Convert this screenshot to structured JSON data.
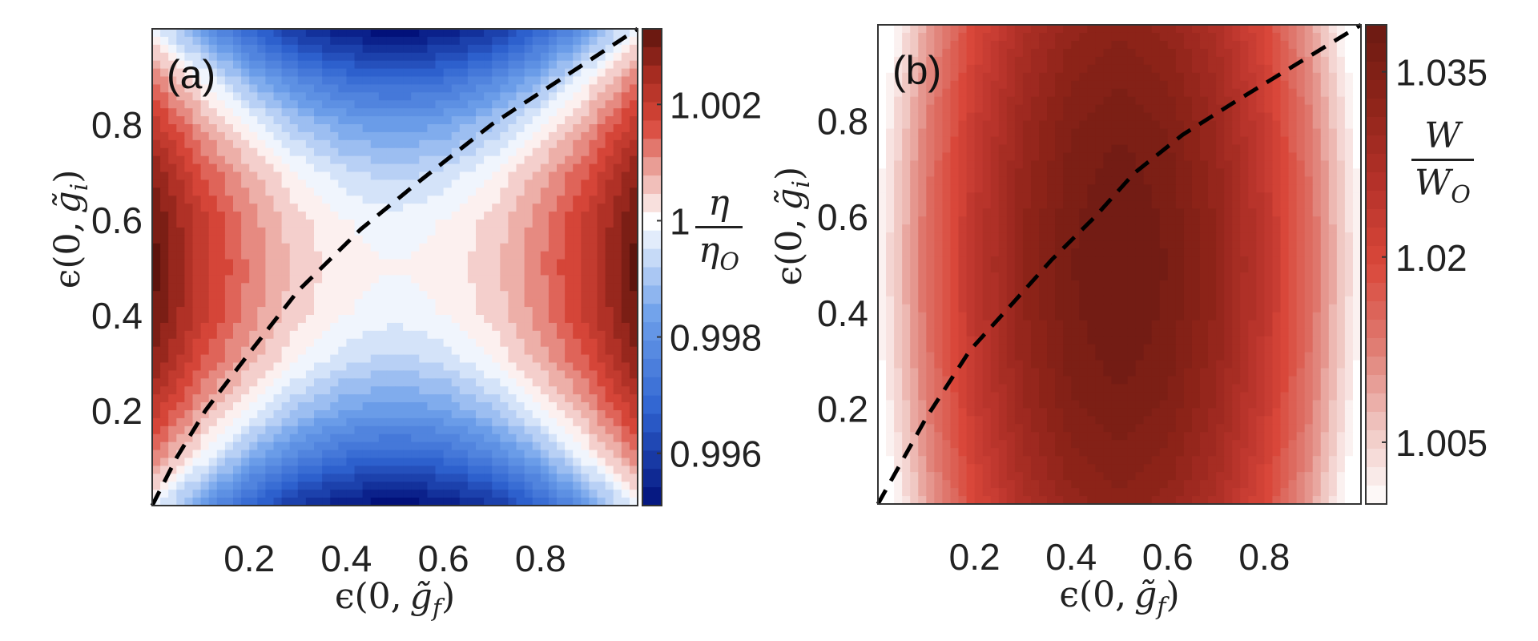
{
  "chart_data": [
    {
      "type": "heatmap",
      "panel_label": "(a)",
      "xlabel": "ϵ(0, g̃f)",
      "ylabel": "ϵ(0, g̃i)",
      "xlabel_main": "ϵ(0,",
      "xlabel_var": "g̃",
      "xlabel_sub": "f",
      "ylabel_main": "ϵ(0,",
      "ylabel_var": "g̃",
      "ylabel_sub": "i",
      "xlim": [
        0,
        1
      ],
      "ylim": [
        0,
        1
      ],
      "xticks": [
        "0.2",
        "0.4",
        "0.6",
        "0.8"
      ],
      "yticks": [
        "0.2",
        "0.4",
        "0.6",
        "0.8"
      ],
      "colorbar": {
        "label_num": "η",
        "label_den": "η",
        "label_den_sub": "O",
        "range": [
          0.9951,
          1.0033
        ],
        "ticks": [
          "1.002",
          "1",
          "0.998",
          "0.996"
        ],
        "colormap": [
          "#02117a",
          "#2f63d0",
          "#6ea0ea",
          "#ffffff",
          "#ecaaa3",
          "#d9473a",
          "#a92d22",
          "#5e140d"
        ],
        "diverging_center": 1.0
      },
      "grid_x": [
        0,
        0.1,
        0.2,
        0.3,
        0.4,
        0.5,
        0.6,
        0.7,
        0.8,
        0.9,
        1.0
      ],
      "grid_y": [
        0,
        0.1,
        0.2,
        0.3,
        0.4,
        0.5,
        0.6,
        0.7,
        0.8,
        0.9,
        1.0
      ],
      "z": [
        [
          1.0,
          0.9982,
          0.9968,
          0.9958,
          0.9952,
          0.995,
          0.9952,
          0.9958,
          0.9968,
          0.9982,
          1.0
        ],
        [
          1.0012,
          1.0,
          0.9986,
          0.9976,
          0.997,
          0.9968,
          0.997,
          0.9976,
          0.9986,
          1.0,
          1.0012
        ],
        [
          1.0021,
          1.0009,
          1.0,
          0.999,
          0.9984,
          0.9982,
          0.9984,
          0.999,
          1.0,
          1.0009,
          1.0021
        ],
        [
          1.0028,
          1.0016,
          1.0007,
          1.0,
          0.9994,
          0.9992,
          0.9994,
          1.0,
          1.0007,
          1.0016,
          1.0028
        ],
        [
          1.0032,
          1.002,
          1.0011,
          1.0004,
          1.0,
          0.9998,
          1.0,
          1.0004,
          1.0011,
          1.002,
          1.0032
        ],
        [
          1.0033,
          1.0021,
          1.0012,
          1.0005,
          1.0001,
          1.0,
          1.0001,
          1.0005,
          1.0012,
          1.0021,
          1.0033
        ],
        [
          1.0032,
          1.002,
          1.0011,
          1.0004,
          1.0,
          0.9998,
          1.0,
          1.0004,
          1.0011,
          1.002,
          1.0032
        ],
        [
          1.0028,
          1.0016,
          1.0007,
          1.0,
          0.9994,
          0.9992,
          0.9994,
          1.0,
          1.0007,
          1.0016,
          1.0028
        ],
        [
          1.0021,
          1.0009,
          1.0,
          0.999,
          0.9984,
          0.9982,
          0.9984,
          0.999,
          1.0,
          1.0009,
          1.0021
        ],
        [
          1.0012,
          1.0,
          0.9986,
          0.9976,
          0.997,
          0.9968,
          0.997,
          0.9976,
          0.9986,
          1.0,
          1.0012
        ],
        [
          1.0,
          0.9982,
          0.9968,
          0.9958,
          0.9952,
          0.995,
          0.9952,
          0.9958,
          0.9968,
          0.9982,
          1.0
        ]
      ],
      "dashed_curve": {
        "x": [
          0,
          0.05,
          0.11,
          0.2,
          0.3,
          0.43,
          0.55,
          0.7,
          0.85,
          1.0
        ],
        "y": [
          0,
          0.1,
          0.2,
          0.32,
          0.45,
          0.58,
          0.68,
          0.8,
          0.9,
          1.0
        ]
      }
    },
    {
      "type": "heatmap",
      "panel_label": "(b)",
      "xlabel": "ϵ(0, g̃f)",
      "ylabel": "ϵ(0, g̃i)",
      "xlabel_main": "ϵ(0,",
      "xlabel_var": "g̃",
      "xlabel_sub": "f",
      "ylabel_main": "ϵ(0,",
      "ylabel_var": "g̃",
      "ylabel_sub": "i",
      "xlim": [
        0,
        1
      ],
      "ylim": [
        0,
        1
      ],
      "xticks": [
        "0.2",
        "0.4",
        "0.6",
        "0.8"
      ],
      "yticks": [
        "0.2",
        "0.4",
        "0.6",
        "0.8"
      ],
      "colorbar": {
        "label_num": "W",
        "label_den": "W",
        "label_den_sub": "O",
        "range": [
          1.0,
          1.0388
        ],
        "ticks": [
          "1.035",
          "1.02",
          "1.005"
        ],
        "colormap": [
          "#ffffff",
          "#efc3be",
          "#df7a70",
          "#d9473a",
          "#b5322a",
          "#8f2419",
          "#6b1a12"
        ]
      },
      "grid_x": [
        0,
        0.1,
        0.2,
        0.3,
        0.4,
        0.5,
        0.6,
        0.7,
        0.8,
        0.9,
        1.0
      ],
      "grid_y": [
        0,
        0.1,
        0.2,
        0.3,
        0.4,
        0.5,
        0.6,
        0.7,
        0.8,
        0.9,
        1.0
      ],
      "z": [
        [
          0.9955,
          1.009,
          1.0195,
          1.027,
          1.0315,
          1.033,
          1.0315,
          1.027,
          1.0195,
          1.009,
          0.9955
        ],
        [
          0.9973,
          1.0108,
          1.0213,
          1.0288,
          1.0333,
          1.0348,
          1.0333,
          1.0288,
          1.0213,
          1.0108,
          0.9973
        ],
        [
          0.9987,
          1.0122,
          1.0227,
          1.0302,
          1.0347,
          1.0362,
          1.0347,
          1.0302,
          1.0227,
          1.0122,
          0.9987
        ],
        [
          0.9997,
          1.0132,
          1.0237,
          1.0312,
          1.0357,
          1.0372,
          1.0357,
          1.0312,
          1.0237,
          1.0132,
          0.9997
        ],
        [
          1.0003,
          1.0138,
          1.0243,
          1.0318,
          1.0363,
          1.0378,
          1.0363,
          1.0318,
          1.0243,
          1.0138,
          1.0003
        ],
        [
          1.0005,
          1.014,
          1.0245,
          1.032,
          1.0365,
          1.038,
          1.0365,
          1.032,
          1.0245,
          1.014,
          1.0005
        ],
        [
          1.0003,
          1.0138,
          1.0243,
          1.0318,
          1.0363,
          1.0378,
          1.0363,
          1.0318,
          1.0243,
          1.0138,
          1.0003
        ],
        [
          0.9997,
          1.0132,
          1.0237,
          1.0312,
          1.0357,
          1.0372,
          1.0357,
          1.0312,
          1.0237,
          1.0132,
          0.9997
        ],
        [
          0.9987,
          1.0122,
          1.0227,
          1.0302,
          1.0347,
          1.0362,
          1.0347,
          1.0302,
          1.0227,
          1.0122,
          0.9987
        ],
        [
          0.9973,
          1.0108,
          1.0213,
          1.0288,
          1.0333,
          1.0348,
          1.0333,
          1.0288,
          1.0213,
          1.0108,
          0.9973
        ],
        [
          0.9955,
          1.009,
          1.0195,
          1.027,
          1.0315,
          1.033,
          1.0315,
          1.027,
          1.0195,
          1.009,
          0.9955
        ]
      ],
      "dashed_curve": {
        "x": [
          0,
          0.1,
          0.19,
          0.28,
          0.36,
          0.45,
          0.53,
          0.63,
          0.74,
          0.87,
          1.0
        ],
        "y": [
          0,
          0.18,
          0.32,
          0.42,
          0.51,
          0.6,
          0.69,
          0.77,
          0.84,
          0.92,
          1.0
        ]
      }
    }
  ]
}
